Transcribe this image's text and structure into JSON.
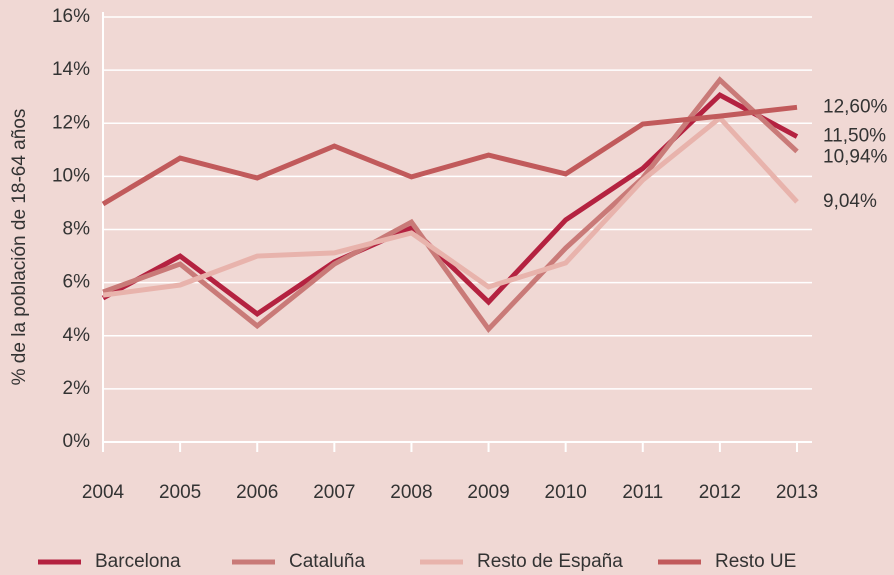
{
  "chart_data": {
    "type": "line",
    "y_label": "% de la población de 18-64 años",
    "categories": [
      "2004",
      "2005",
      "2006",
      "2007",
      "2008",
      "2009",
      "2010",
      "2011",
      "2012",
      "2013"
    ],
    "series": [
      {
        "name": "Barcelona",
        "color": "#b42240",
        "values": [
          5.42,
          7.0,
          4.82,
          6.78,
          8.06,
          5.27,
          8.36,
          10.3,
          13.06,
          11.5
        ],
        "end_label": "11,50%"
      },
      {
        "name": "Cataluña",
        "color": "#c97a78",
        "values": [
          5.65,
          6.7,
          4.37,
          6.7,
          8.28,
          4.25,
          7.3,
          9.94,
          13.63,
          10.94
        ],
        "end_label": "10,94%"
      },
      {
        "name": "Resto de España",
        "color": "#e8b3ac",
        "values": [
          5.53,
          5.91,
          7.0,
          7.12,
          7.87,
          5.84,
          6.74,
          9.86,
          12.2,
          9.04
        ],
        "end_label": "9,04%"
      },
      {
        "name": "Resto UE",
        "color": "#c15a5b",
        "values": [
          8.96,
          10.69,
          9.94,
          11.14,
          9.98,
          10.8,
          10.09,
          11.97,
          12.27,
          12.6
        ],
        "end_label": "12,60%"
      }
    ],
    "ylim": [
      0,
      16
    ],
    "yticks": [
      {
        "value": 0,
        "label": "0%"
      },
      {
        "value": 2,
        "label": "2%"
      },
      {
        "value": 4,
        "label": "4%"
      },
      {
        "value": 6,
        "label": "6%"
      },
      {
        "value": 8,
        "label": "8%"
      },
      {
        "value": 10,
        "label": "10%"
      },
      {
        "value": 12,
        "label": "12%"
      },
      {
        "value": 14,
        "label": "14%"
      },
      {
        "value": 16,
        "label": "16%"
      }
    ],
    "grid": true
  }
}
